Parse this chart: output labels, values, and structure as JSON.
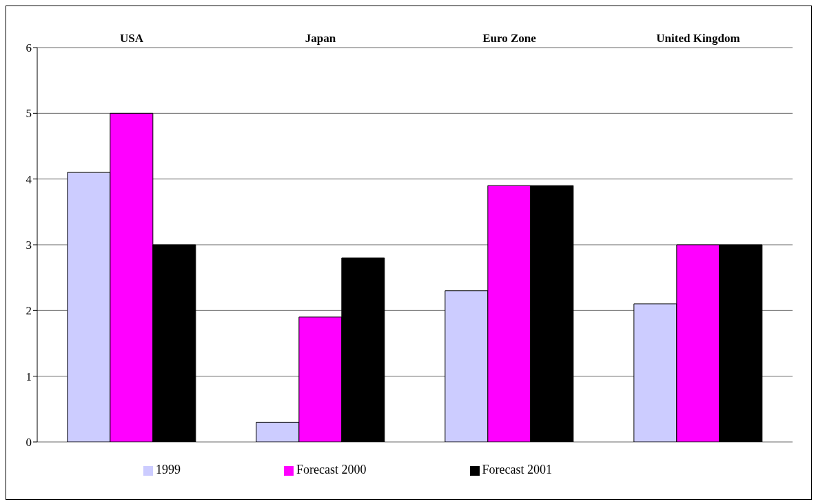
{
  "chart_data": {
    "type": "bar",
    "categories": [
      "USA",
      "Japan",
      "Euro Zone",
      "United Kingdom"
    ],
    "series": [
      {
        "name": "1999",
        "color": "#ccccff",
        "values": [
          4.1,
          0.3,
          2.3,
          2.1
        ]
      },
      {
        "name": "Forecast 2000",
        "color": "#ff00ff",
        "values": [
          5.0,
          1.9,
          3.9,
          3.0
        ]
      },
      {
        "name": "Forecast 2001",
        "color": "#000000",
        "values": [
          3.0,
          2.8,
          3.9,
          3.0
        ]
      }
    ],
    "ylim": [
      0,
      6
    ],
    "yticks": [
      0,
      1,
      2,
      3,
      4,
      5,
      6
    ],
    "grid": "y",
    "legend": "bottom"
  }
}
